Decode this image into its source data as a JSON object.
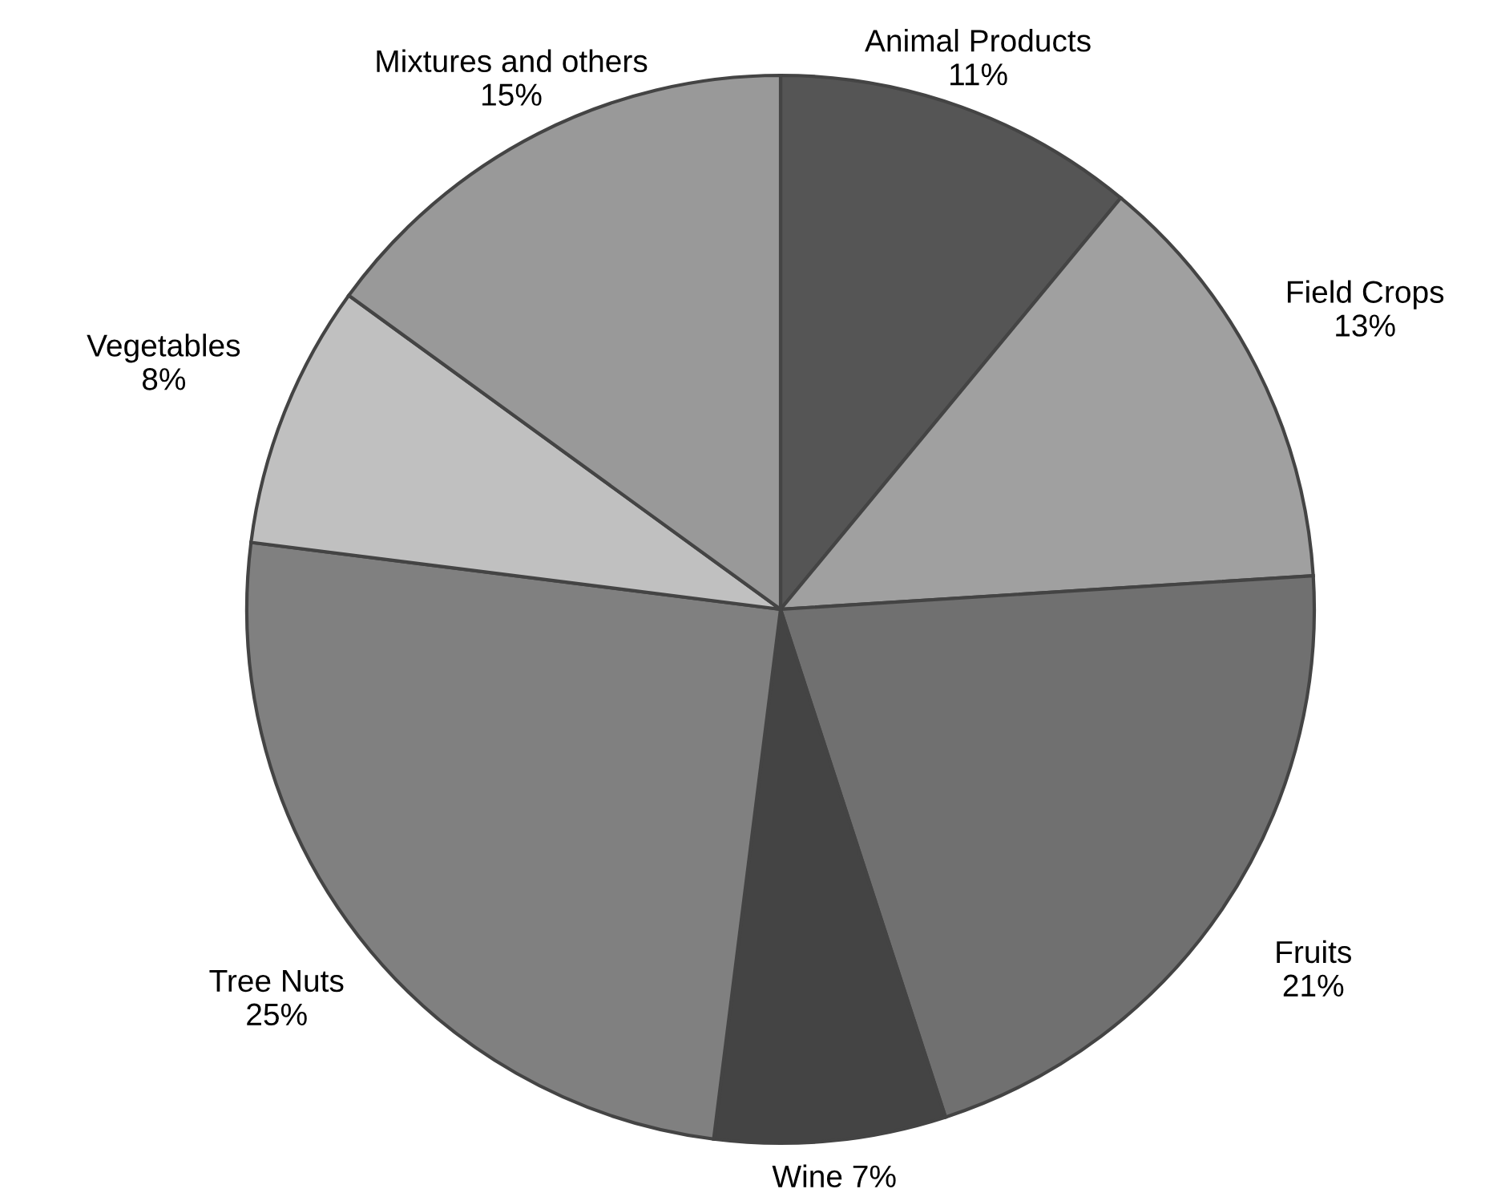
{
  "chart_data": {
    "type": "pie",
    "categories": [
      "Animal Products",
      "Field Crops",
      "Fruits",
      "Wine",
      "Tree Nuts",
      "Vegetables",
      "Mixtures and others"
    ],
    "values": [
      11,
      13,
      21,
      7,
      25,
      8,
      15
    ],
    "colors": [
      "#555555",
      "#a0a0a0",
      "#707070",
      "#444444",
      "#808080",
      "#c0c0c0",
      "#999999"
    ],
    "value_labels": [
      "11%",
      "13%",
      "21%",
      "7%",
      "25%",
      "8%",
      "15%"
    ]
  }
}
